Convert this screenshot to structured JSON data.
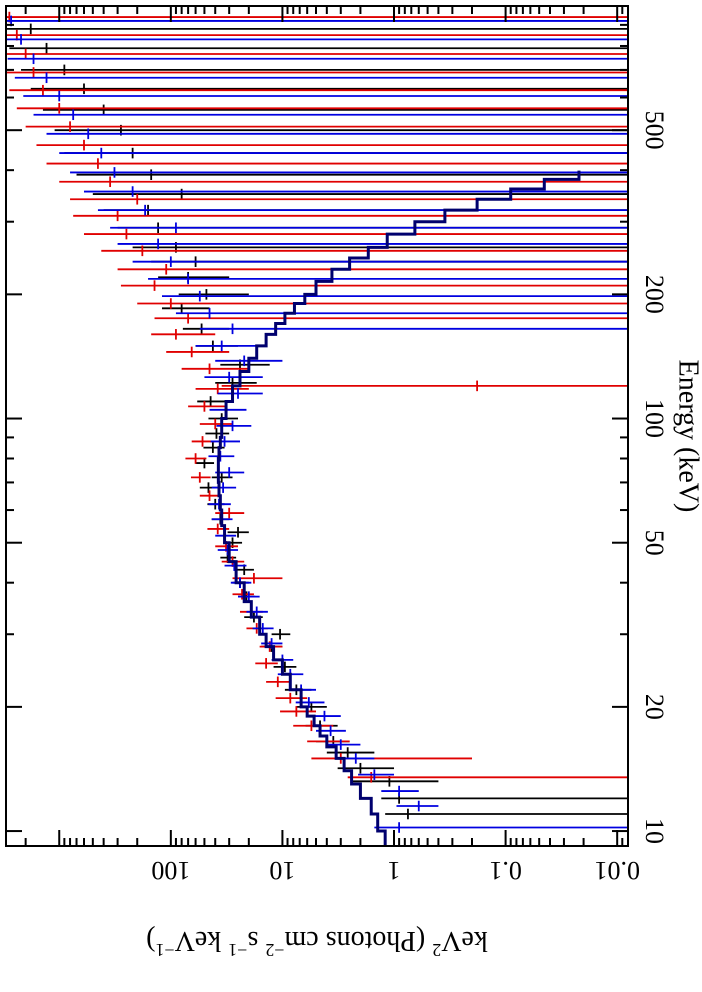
{
  "chart_data": {
    "type": "scatter",
    "orientation": "rotated-90-clockwise",
    "xlabel": "Energy (keV)",
    "ylabel_main": "keV",
    "ylabel_sup": "2",
    "ylabel_rest": " (Photons cm",
    "ylabel_sup2": "−2",
    "ylabel_rest2": " s",
    "ylabel_sup3": "−1",
    "ylabel_rest3": " keV",
    "ylabel_sup4": "−1",
    "ylabel_end": ")",
    "x_scale": "log",
    "y_scale": "log",
    "xlim": [
      9.2,
      1000
    ],
    "ylim": [
      0.008,
      3000
    ],
    "x_ticks": [
      {
        "value": 10,
        "label": "10"
      },
      {
        "value": 20,
        "label": "20"
      },
      {
        "value": 50,
        "label": "50"
      },
      {
        "value": 100,
        "label": "100"
      },
      {
        "value": 200,
        "label": "200"
      },
      {
        "value": 500,
        "label": "500"
      }
    ],
    "y_ticks": [
      {
        "value": 0.01,
        "label": "0.01"
      },
      {
        "value": 0.1,
        "label": "0.1"
      },
      {
        "value": 1,
        "label": "1"
      },
      {
        "value": 10,
        "label": "10"
      },
      {
        "value": 100,
        "label": "100"
      }
    ],
    "colors": {
      "black": "#000000",
      "red": "#e00000",
      "blue": "#0000e0"
    },
    "model": {
      "color": "#00006e",
      "x": [
        9.2,
        10,
        11,
        12,
        13,
        14,
        15,
        16,
        17,
        18,
        19,
        20,
        22,
        24,
        26,
        28,
        30,
        33,
        36,
        40,
        45,
        50,
        55,
        60,
        65,
        70,
        75,
        80,
        85,
        90,
        100,
        110,
        120,
        130,
        140,
        150,
        160,
        170,
        180,
        190,
        200,
        215,
        230,
        245,
        260,
        280,
        300,
        320,
        340,
        360,
        380
      ],
      "y": [
        1.2,
        1.4,
        1.6,
        2.0,
        2.4,
        2.8,
        3.3,
        4.0,
        4.6,
        5.2,
        6.0,
        6.8,
        8.5,
        10,
        12,
        14,
        16,
        19,
        22,
        26,
        30,
        33,
        35,
        36,
        37,
        37.5,
        37.5,
        37,
        36,
        35,
        32,
        28,
        24,
        20,
        17,
        14,
        11.5,
        9.5,
        7.8,
        6.3,
        5.0,
        3.6,
        2.5,
        1.7,
        1.15,
        0.65,
        0.35,
        0.18,
        0.09,
        0.045,
        0.022
      ]
    },
    "series": [
      {
        "name": "",
        "color": "#000000",
        "points": [
          [
            11.0,
            0.75,
            0.005,
            1.2
          ],
          [
            12.0,
            0.9,
            0.005,
            1.3
          ],
          [
            13.2,
            1.1,
            0.4,
            2.4
          ],
          [
            14.2,
            2.0,
            1.0,
            3.2
          ],
          [
            15.5,
            2.6,
            1.5,
            4.0
          ],
          [
            16.5,
            3.5,
            2.5,
            5.0
          ],
          [
            18,
            4.6,
            3.2,
            6.2
          ],
          [
            20,
            5.5,
            4.0,
            7.5
          ],
          [
            22,
            7.5,
            5.5,
            9.5
          ],
          [
            25,
            9.5,
            7.5,
            12
          ],
          [
            28,
            12.5,
            10,
            15.5
          ],
          [
            30,
            10.5,
            8.5,
            12.5
          ],
          [
            33,
            18,
            15,
            22
          ],
          [
            37,
            21,
            17.5,
            25
          ],
          [
            40,
            24,
            20,
            28
          ],
          [
            43,
            22,
            18,
            27
          ],
          [
            46,
            31,
            26,
            36
          ],
          [
            50,
            28,
            23,
            34
          ],
          [
            53,
            25,
            20,
            31
          ],
          [
            57,
            36,
            30,
            43
          ],
          [
            62,
            40,
            33,
            47
          ],
          [
            68,
            46,
            38,
            55
          ],
          [
            72,
            35,
            28,
            43
          ],
          [
            78,
            50,
            41,
            60
          ],
          [
            85,
            42,
            33,
            51
          ],
          [
            92,
            39,
            30,
            49
          ],
          [
            100,
            35,
            25,
            46
          ],
          [
            110,
            44,
            30,
            58
          ],
          [
            122,
            28,
            17,
            40
          ],
          [
            135,
            24,
            13,
            36
          ],
          [
            150,
            42,
            25,
            60
          ],
          [
            165,
            53,
            30,
            78
          ],
          [
            185,
            80,
            45,
            120
          ],
          [
            200,
            48,
            20,
            85
          ],
          [
            220,
            70,
            30,
            130
          ],
          [
            240,
            60,
            0.005,
            150
          ],
          [
            260,
            90,
            0.005,
            220
          ],
          [
            290,
            130,
            0.005,
            300
          ],
          [
            320,
            160,
            0.005,
            400
          ],
          [
            350,
            80,
            0.005,
            500
          ],
          [
            390,
            150,
            0.005,
            700
          ],
          [
            440,
            220,
            0.005,
            900
          ],
          [
            500,
            280,
            0.005,
            1100
          ],
          [
            560,
            400,
            0.005,
            1400
          ],
          [
            630,
            600,
            0.005,
            1800
          ],
          [
            700,
            900,
            0.005,
            2200
          ],
          [
            790,
            1300,
            0.005,
            2800
          ],
          [
            880,
            1800,
            0.005,
            3000
          ]
        ]
      },
      {
        "name": "",
        "color": "#e00000",
        "points": [
          [
            13.5,
            1.6,
            0.005,
            2.6
          ],
          [
            15,
            3.0,
            0.2,
            5.5
          ],
          [
            16.5,
            4.0,
            2.5,
            6.0
          ],
          [
            18,
            5.5,
            3.5,
            8.0
          ],
          [
            19.5,
            7.5,
            5.0,
            10.5
          ],
          [
            21,
            8.5,
            6.0,
            11.5
          ],
          [
            23,
            11,
            8.5,
            14
          ],
          [
            25.5,
            14,
            11,
            17.5
          ],
          [
            28,
            13,
            10,
            16
          ],
          [
            31,
            17,
            13.5,
            21
          ],
          [
            34,
            19,
            15,
            24
          ],
          [
            37.5,
            23,
            18,
            28
          ],
          [
            41,
            18,
            10,
            28
          ],
          [
            45,
            28,
            22,
            35
          ],
          [
            49,
            32,
            25,
            40
          ],
          [
            54,
            38,
            30,
            47
          ],
          [
            59,
            30,
            22,
            40
          ],
          [
            65,
            45,
            36,
            55
          ],
          [
            72,
            55,
            44,
            66
          ],
          [
            80,
            60,
            48,
            74
          ],
          [
            88,
            52,
            40,
            65
          ],
          [
            97,
            40,
            28,
            55
          ],
          [
            107,
            50,
            32,
            70
          ],
          [
            118,
            38,
            20,
            60
          ],
          [
            120,
            0.18,
            0.005,
            35
          ],
          [
            132,
            45,
            20,
            80
          ],
          [
            145,
            65,
            30,
            110
          ],
          [
            160,
            90,
            40,
            150
          ],
          [
            175,
            70,
            0.005,
            140
          ],
          [
            190,
            100,
            0.005,
            200
          ],
          [
            210,
            140,
            0.005,
            280
          ],
          [
            230,
            110,
            0.005,
            300
          ],
          [
            255,
            180,
            0.005,
            420
          ],
          [
            280,
            250,
            0.005,
            600
          ],
          [
            310,
            300,
            0.005,
            750
          ],
          [
            340,
            200,
            0.005,
            800
          ],
          [
            375,
            350,
            0.005,
            1000
          ],
          [
            415,
            450,
            0.005,
            1300
          ],
          [
            460,
            600,
            0.005,
            1600
          ],
          [
            510,
            800,
            0.005,
            2000
          ],
          [
            565,
            1000,
            0.005,
            2400
          ],
          [
            625,
            1400,
            0.005,
            2800
          ],
          [
            690,
            1700,
            0.005,
            3000
          ],
          [
            765,
            2000,
            0.005,
            3000
          ],
          [
            850,
            2400,
            0.005,
            3000
          ],
          [
            940,
            2800,
            0.005,
            3000
          ]
        ]
      },
      {
        "name": "",
        "color": "#0000e0",
        "points": [
          [
            10.2,
            0.9,
            0.005,
            1.5
          ],
          [
            11.5,
            0.6,
            0.4,
            0.95
          ],
          [
            12.5,
            0.9,
            0.6,
            1.3
          ],
          [
            13.7,
            1.5,
            1.0,
            2.1
          ],
          [
            15,
            2.2,
            1.5,
            3.0
          ],
          [
            16.2,
            3.0,
            2.0,
            4.0
          ],
          [
            17.5,
            3.7,
            2.7,
            5.0
          ],
          [
            19,
            4.2,
            3.0,
            5.8
          ],
          [
            20.5,
            5.8,
            4.2,
            7.6
          ],
          [
            22,
            6.8,
            5.0,
            8.8
          ],
          [
            24,
            8.5,
            6.5,
            11
          ],
          [
            26,
            10,
            8.0,
            12.5
          ],
          [
            28.5,
            12.5,
            10,
            15.5
          ],
          [
            31,
            15,
            12,
            18.5
          ],
          [
            34,
            17,
            13.5,
            21
          ],
          [
            37,
            20,
            16,
            25
          ],
          [
            40,
            24,
            19,
            29
          ],
          [
            44,
            27,
            21,
            33
          ],
          [
            48,
            31,
            25,
            38
          ],
          [
            52,
            33,
            26,
            40
          ],
          [
            57,
            35,
            28,
            43
          ],
          [
            62,
            37,
            29,
            46
          ],
          [
            68,
            34,
            26,
            43
          ],
          [
            74,
            30,
            22,
            40
          ],
          [
            81,
            36,
            27,
            46
          ],
          [
            88,
            33,
            24,
            44
          ],
          [
            96,
            28,
            19,
            39
          ],
          [
            105,
            32,
            21,
            45
          ],
          [
            115,
            25,
            15,
            38
          ],
          [
            126,
            30,
            15,
            50
          ],
          [
            138,
            22,
            10,
            40
          ],
          [
            150,
            35,
            15,
            60
          ],
          [
            165,
            28,
            0.005,
            55
          ],
          [
            180,
            45,
            0.005,
            90
          ],
          [
            198,
            55,
            0.005,
            120
          ],
          [
            218,
            70,
            0.005,
            160
          ],
          [
            240,
            100,
            0.005,
            220
          ],
          [
            265,
            130,
            0.005,
            300
          ],
          [
            290,
            90,
            0.005,
            350
          ],
          [
            320,
            170,
            0.005,
            450
          ],
          [
            355,
            220,
            0.005,
            600
          ],
          [
            395,
            320,
            0.005,
            800
          ],
          [
            440,
            420,
            0.005,
            1000
          ],
          [
            490,
            550,
            0.005,
            1300
          ],
          [
            545,
            750,
            0.005,
            1700
          ],
          [
            605,
            1000,
            0.005,
            2100
          ],
          [
            670,
            1300,
            0.005,
            2500
          ],
          [
            745,
            1700,
            0.005,
            2900
          ],
          [
            830,
            2200,
            0.005,
            3000
          ],
          [
            920,
            2700,
            0.005,
            3000
          ]
        ]
      }
    ]
  }
}
